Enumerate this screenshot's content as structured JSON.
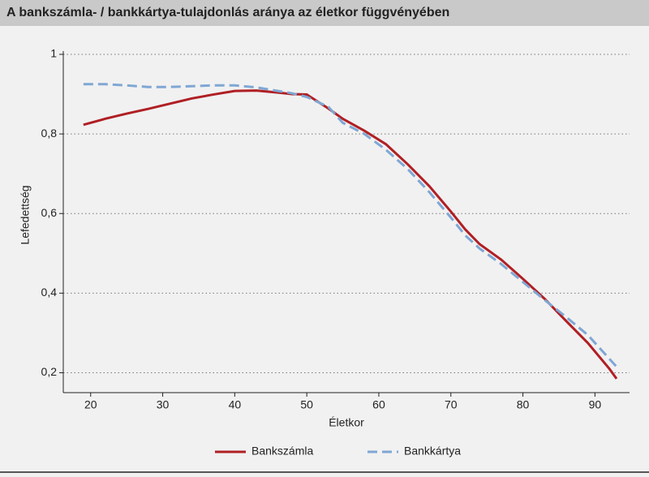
{
  "chart_data": {
    "type": "line",
    "title": "A bankszámla- / bankkártya-tulajdonlás aránya az életkor függvényében",
    "x_label": "Életkor",
    "y_label": "Lefedettség",
    "x": [
      19,
      22,
      25,
      28,
      31,
      34,
      37,
      40,
      43,
      46,
      48,
      50,
      53,
      55,
      58,
      61,
      64,
      67,
      70,
      72,
      74,
      77,
      80,
      83,
      86,
      89,
      92,
      93
    ],
    "series": [
      {
        "name": "Bankszámla",
        "color": "#b01f24",
        "dashed": false,
        "values": [
          0.823,
          0.838,
          0.851,
          0.863,
          0.876,
          0.889,
          0.899,
          0.908,
          0.909,
          0.904,
          0.9,
          0.899,
          0.864,
          0.838,
          0.808,
          0.774,
          0.724,
          0.669,
          0.605,
          0.56,
          0.523,
          0.484,
          0.436,
          0.386,
          0.33,
          0.275,
          0.21,
          0.185
        ]
      },
      {
        "name": "Bankkártya",
        "color": "#7fa7d4",
        "dashed": true,
        "values": [
          0.925,
          0.925,
          0.922,
          0.918,
          0.918,
          0.92,
          0.922,
          0.922,
          0.917,
          0.908,
          0.902,
          0.893,
          0.868,
          0.828,
          0.8,
          0.76,
          0.712,
          0.654,
          0.59,
          0.545,
          0.512,
          0.473,
          0.428,
          0.383,
          0.34,
          0.295,
          0.235,
          0.215
        ]
      }
    ],
    "xlim": [
      16.2,
      94.8
    ],
    "xticks": [
      20,
      30,
      40,
      50,
      60,
      70,
      80,
      90
    ],
    "ylim": [
      0.15,
      1
    ],
    "yticks": [
      {
        "value": 0.2,
        "label": "0,2"
      },
      {
        "value": 0.4,
        "label": "0,4"
      },
      {
        "value": 0.6,
        "label": "0,6"
      },
      {
        "value": 0.8,
        "label": "0,8"
      },
      1
    ],
    "grid": true,
    "legend": "bottom"
  }
}
